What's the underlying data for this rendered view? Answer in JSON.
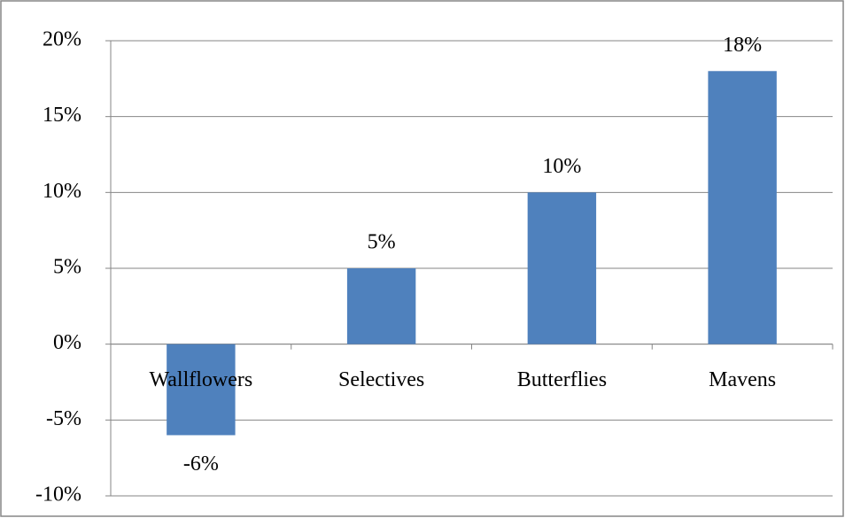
{
  "chart_data": {
    "type": "bar",
    "categories": [
      "Wallflowers",
      "Selectives",
      "Butterflies",
      "Mavens"
    ],
    "values": [
      -6,
      5,
      10,
      18
    ],
    "value_labels": [
      "-6%",
      "5%",
      "10%",
      "18%"
    ],
    "color": "#4f81bd",
    "ylim": [
      -10,
      20
    ],
    "yticks": [
      {
        "value": -10,
        "label": "-10%"
      },
      {
        "value": -5,
        "label": "-5%"
      },
      {
        "value": 0,
        "label": "0%"
      },
      {
        "value": 5,
        "label": "5%"
      },
      {
        "value": 10,
        "label": "10%"
      },
      {
        "value": 15,
        "label": "15%"
      },
      {
        "value": 20,
        "label": "20%"
      }
    ],
    "grid": true
  }
}
